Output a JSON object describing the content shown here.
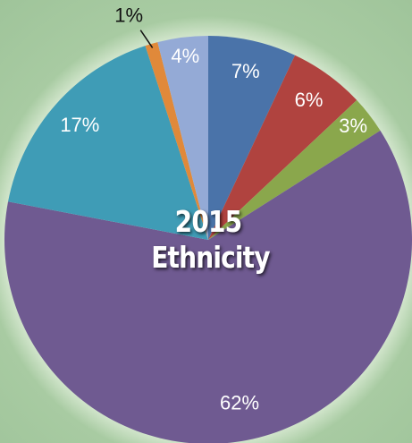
{
  "chart_data": {
    "type": "pie",
    "title": "2015 Ethnicity",
    "values": [
      7,
      6,
      3,
      62,
      17,
      1,
      4
    ],
    "value_labels": [
      "7%",
      "6%",
      "3%",
      "62%",
      "17%",
      "1%",
      "4%"
    ],
    "colors": [
      "#4a73a9",
      "#b0433f",
      "#8aa74c",
      "#6f5a91",
      "#3f9cb6",
      "#e0893a",
      "#94aad6"
    ],
    "start_angle": 0,
    "direction": "clockwise"
  }
}
